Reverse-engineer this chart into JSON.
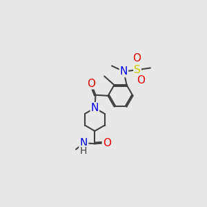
{
  "bg_color": "#e8e8e8",
  "bond_color": "#404040",
  "bond_lw": 1.5,
  "atom_colors": {
    "N": "#0000ee",
    "O": "#ee0000",
    "S": "#cccc00",
    "C": "#404040"
  },
  "ring_r": 0.78,
  "pip_r": 0.72
}
